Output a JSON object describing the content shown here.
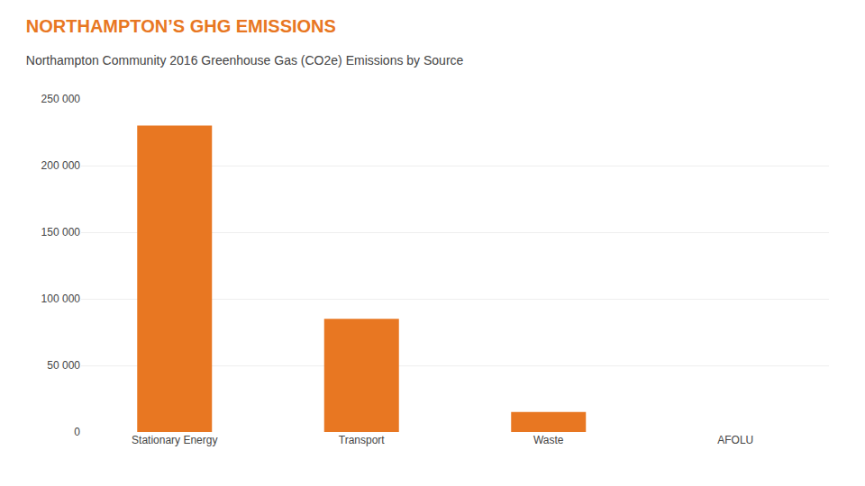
{
  "chart_data": {
    "type": "bar",
    "title": "NORTHAMPTON’S GHG EMISSIONS",
    "subtitle": "Northampton Community 2016 Greenhouse Gas (CO2e) Emissions by Source",
    "categories": [
      "Stationary Energy",
      "Transport",
      "Waste",
      "AFOLU"
    ],
    "values": [
      230000,
      85000,
      15000,
      0
    ],
    "color": "#e87722",
    "ylim": [
      0,
      250000
    ],
    "yticks": [
      0,
      {
        "value": 50000,
        "label": "50 000"
      },
      {
        "value": 100000,
        "label": "100 000"
      },
      {
        "value": 150000,
        "label": "150 000"
      },
      {
        "value": 200000,
        "label": "200 000"
      },
      {
        "value": 250000,
        "label": "250 000"
      }
    ],
    "grid": true
  }
}
